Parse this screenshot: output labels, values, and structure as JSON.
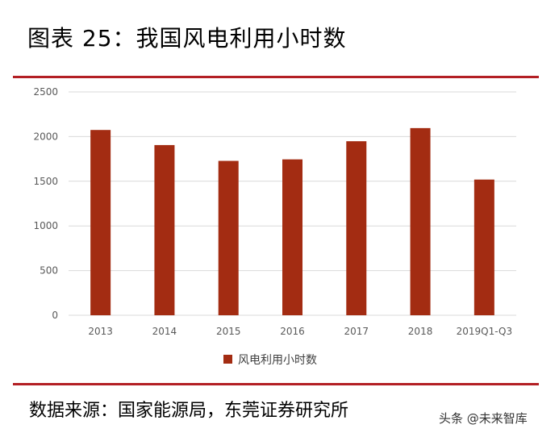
{
  "title": "图表 25：我国风电利用小时数",
  "source": "数据来源：国家能源局，东莞证券研究所",
  "watermark": "头条 @未来智库",
  "colors": {
    "bar": "#a32c12",
    "rule": "#b31f24",
    "grid": "#d9d9d9",
    "axis_text": "#595959"
  },
  "chart_data": {
    "type": "bar",
    "categories": [
      "2013",
      "2014",
      "2015",
      "2016",
      "2017",
      "2018",
      "2019Q1-Q3"
    ],
    "series": [
      {
        "name": "风电利用小时数",
        "values": [
          2074,
          1905,
          1728,
          1745,
          1948,
          2095,
          1519
        ]
      }
    ],
    "ylim": [
      0,
      2500
    ],
    "yticks": [
      "0",
      "500",
      "1000",
      "1500",
      "2000",
      "2500"
    ],
    "grid": true,
    "legend": "bottom"
  }
}
